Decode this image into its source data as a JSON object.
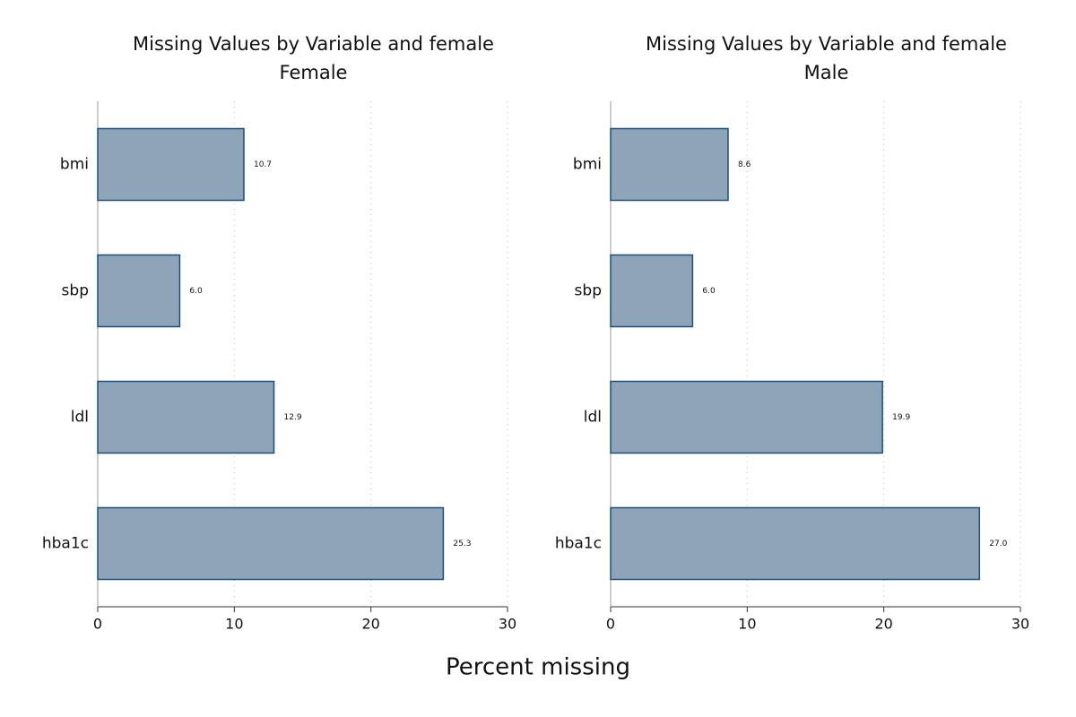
{
  "xlabel": "Percent missing",
  "chart_data": [
    {
      "type": "barh",
      "title": "Missing Values by Variable and female",
      "subtitle": "Female",
      "categories": [
        "bmi",
        "sbp",
        "ldl",
        "hba1c"
      ],
      "values": [
        10.7,
        6.0,
        12.9,
        25.3
      ],
      "value_labels": [
        "10.7",
        "6.0",
        "12.9",
        "25.3"
      ],
      "color": "#8ea4b8",
      "edgecolor": "#1f4e79",
      "xlim": [
        0,
        30
      ],
      "xticks": [
        0,
        10,
        20,
        30
      ],
      "grid": true
    },
    {
      "type": "barh",
      "title": "Missing Values by Variable and female",
      "subtitle": "Male",
      "categories": [
        "bmi",
        "sbp",
        "ldl",
        "hba1c"
      ],
      "values": [
        8.6,
        6.0,
        19.9,
        27.0
      ],
      "value_labels": [
        "8.6",
        "6.0",
        "19.9",
        "27.0"
      ],
      "color": "#8ea4b8",
      "edgecolor": "#1f4e79",
      "xlim": [
        0,
        30
      ],
      "xticks": [
        0,
        10,
        20,
        30
      ],
      "grid": true
    }
  ]
}
